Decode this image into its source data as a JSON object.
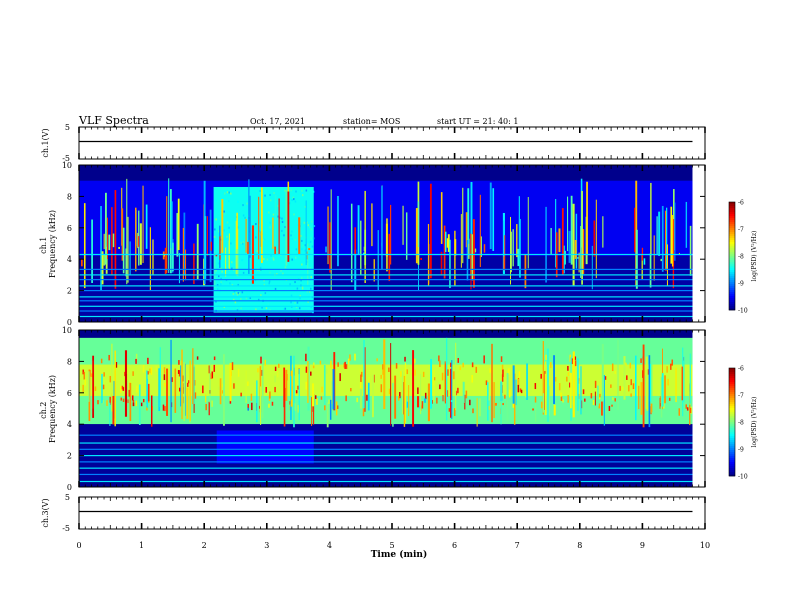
{
  "header": {
    "title": "VLF Spectra",
    "date": "Oct. 17, 2021",
    "station": "station= MOS",
    "start": "start  UT =   21: 40: 1"
  },
  "chart_data": [
    {
      "type": "line",
      "ylabel": "ch.1(V)",
      "yticklabels": [
        "5",
        "-5"
      ],
      "ylim": [
        -5,
        5
      ],
      "series": [
        {
          "x": [
            0,
            9.8
          ],
          "values": [
            0,
            0
          ]
        }
      ]
    },
    {
      "type": "heatmap",
      "ylabel": "ch.1\nFrequency (kHz)",
      "yticks": [
        0,
        2,
        4,
        6,
        8,
        10
      ],
      "ylim": [
        0,
        10
      ],
      "xlim": [
        0,
        10
      ],
      "data_end_min": 9.8,
      "background_hum_lines_khz": [
        0.35,
        0.7,
        1.0,
        1.35,
        1.6,
        2.0,
        2.3,
        2.7,
        3.0,
        3.35,
        4.3
      ],
      "hiss_event": {
        "start_min": 2.15,
        "end_min": 3.75,
        "fmin_khz": 0.6,
        "fmax_khz": 8.6,
        "level": "approx -8.5 to -8.0"
      },
      "sferics_fmax_khz": 9.2,
      "colorbar": {
        "label": "log(PSD) (V²/Hz)",
        "range": [
          -10,
          -6
        ],
        "ticks": [
          "-6",
          "-7",
          "-8",
          "-9",
          "-10"
        ]
      }
    },
    {
      "type": "heatmap",
      "ylabel": "ch.2\nFrequency (kHz)",
      "yticks": [
        0,
        2,
        4,
        6,
        8,
        10
      ],
      "ylim": [
        0,
        10
      ],
      "xlim": [
        0,
        10
      ],
      "data_end_min": 9.8,
      "background_hum_lines_khz": [
        0.35,
        0.8,
        1.2,
        1.6,
        2.0,
        2.4,
        2.8,
        3.3
      ],
      "band": {
        "fmin_khz": 4.0,
        "fmax_khz": 9.5,
        "peak_khz": 6.8,
        "level": "approx -8 to -6.5"
      },
      "weak_event": {
        "start_min": 2.2,
        "end_min": 3.75,
        "fmin_khz": 1.5,
        "fmax_khz": 3.6
      },
      "colorbar": {
        "label": "log(PSD) (V²/Hz)",
        "range": [
          -10,
          -6
        ],
        "ticks": [
          "-6",
          "-7",
          "-8",
          "-9",
          "-10"
        ]
      }
    },
    {
      "type": "line",
      "ylabel": "ch.3(V)",
      "yticklabels": [
        "5",
        "-5"
      ],
      "ylim": [
        -5,
        5
      ],
      "series": [
        {
          "x": [
            0,
            9.8
          ],
          "values": [
            0,
            0
          ]
        }
      ]
    }
  ],
  "xaxis": {
    "label": "Time (min)",
    "ticks": [
      "0",
      "1",
      "2",
      "3",
      "4",
      "5",
      "6",
      "7",
      "8",
      "9",
      "10"
    ],
    "range": [
      0,
      10
    ]
  },
  "colors": {
    "bg": "#ffffff",
    "ink": "#000000"
  }
}
